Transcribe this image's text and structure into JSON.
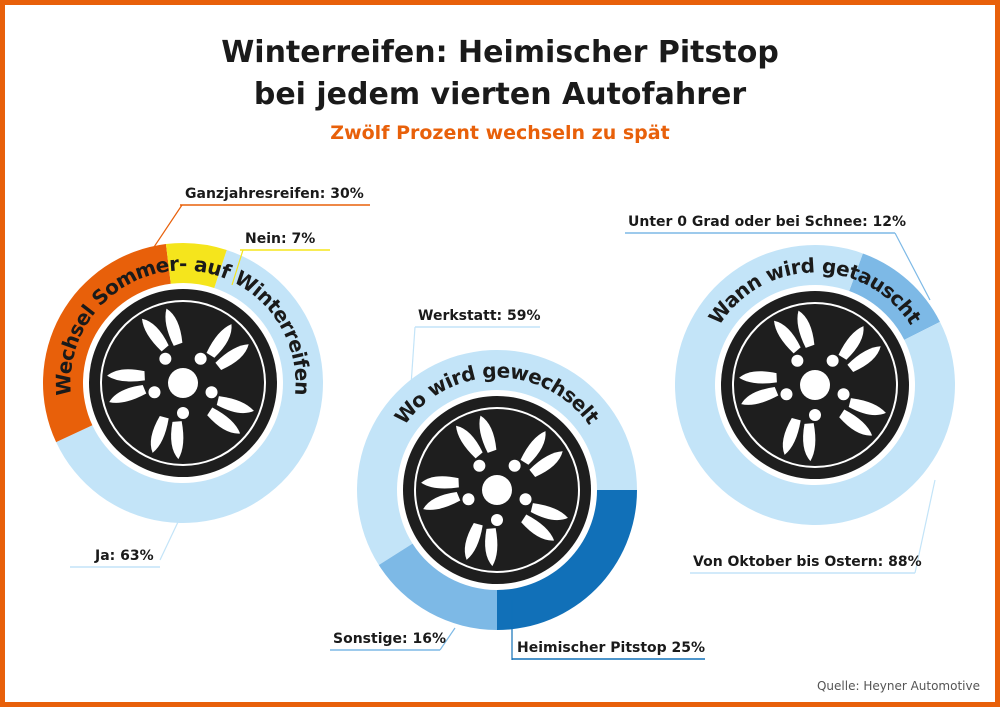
{
  "title_line1": "Winterreifen: Heimischer Pitstop",
  "title_line2": "bei jedem vierten Autofahrer",
  "subtitle": "Zwölf Prozent wechseln zu spät",
  "source": "Quelle: Heyner Automotive",
  "chart_data": [
    {
      "type": "donut",
      "title": "Wechsel Sommer- auf Winterreifen",
      "values": [
        63,
        30,
        7
      ],
      "value_labels": [
        "Ja: 63%",
        "Ganzjahresreifen: 30%",
        "Nein: 7%"
      ],
      "colors": [
        "#c3e4f8",
        "#e8600a",
        "#f5e51c"
      ]
    },
    {
      "type": "donut",
      "title": "Wo wird gewechselt",
      "values": [
        59,
        25,
        16
      ],
      "value_labels": [
        "Werkstatt: 59%",
        "Heimischer Pitstop 25%",
        "Sonstige: 16%"
      ],
      "colors": [
        "#c3e4f8",
        "#1170b8",
        "#7db9e6"
      ]
    },
    {
      "type": "donut",
      "title": "Wann wird getauscht",
      "values": [
        12,
        88
      ],
      "value_labels": [
        "Unter 0 Grad oder bei Schnee: 12%",
        "Von Oktober bis Ostern: 88%"
      ],
      "colors": [
        "#7db9e6",
        "#c3e4f8"
      ]
    }
  ]
}
